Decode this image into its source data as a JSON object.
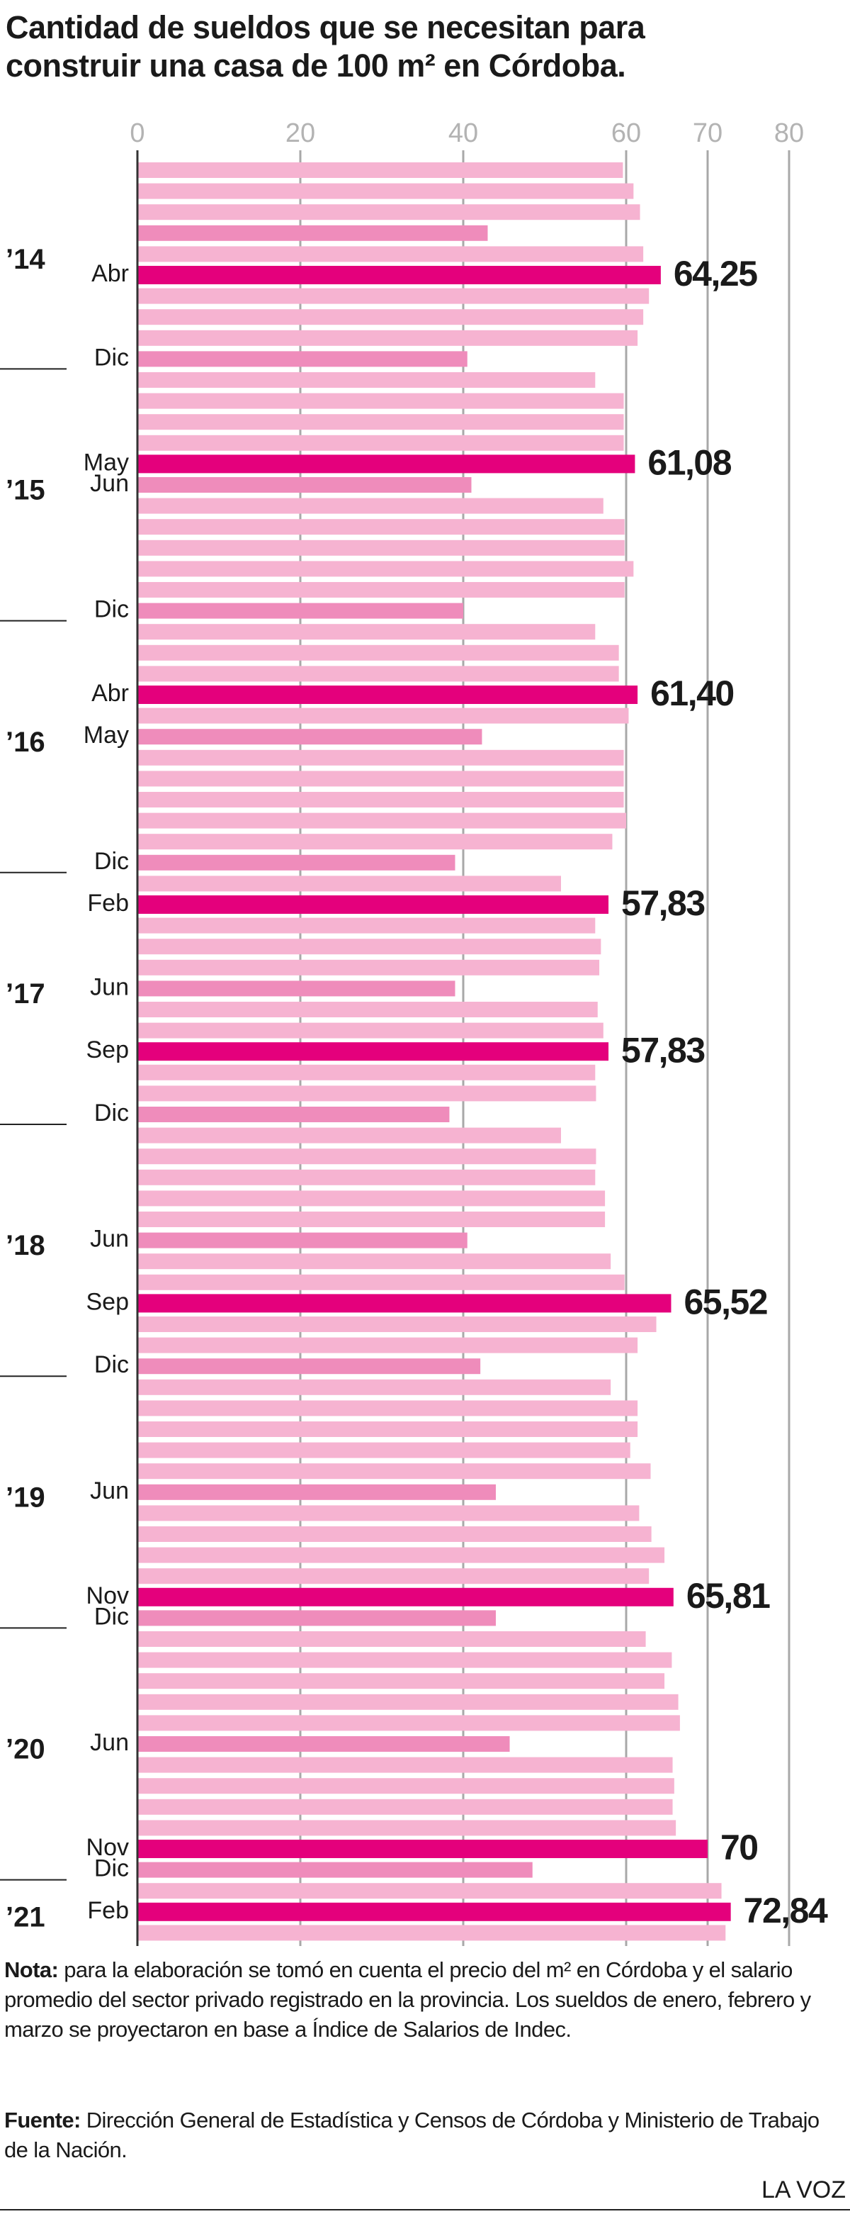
{
  "chart_data": {
    "type": "hbar",
    "title": "Cantidad de sueldos que se necesitan para construir una casa de 100 m² en Córdoba.",
    "xlim": [
      0,
      80
    ],
    "xticks": [
      0,
      20,
      40,
      60,
      70,
      80
    ],
    "grid": true,
    "categories": [
      null,
      null,
      null,
      null,
      null,
      "Abr",
      null,
      null,
      null,
      "Dic",
      null,
      null,
      null,
      null,
      "May",
      "Jun",
      null,
      null,
      null,
      null,
      null,
      "Dic",
      null,
      null,
      null,
      "Abr",
      null,
      "May",
      null,
      null,
      null,
      null,
      null,
      "Dic",
      null,
      "Feb",
      null,
      null,
      null,
      "Jun",
      null,
      null,
      "Sep",
      null,
      null,
      "Dic",
      null,
      null,
      null,
      null,
      null,
      "Jun",
      null,
      null,
      "Sep",
      null,
      null,
      "Dic",
      null,
      null,
      null,
      null,
      null,
      "Jun",
      null,
      null,
      null,
      null,
      "Nov",
      "Dic",
      null,
      null,
      null,
      null,
      null,
      "Jun",
      null,
      null,
      null,
      null,
      "Nov",
      "Dic",
      null,
      "Feb",
      null
    ],
    "years": [
      null,
      null,
      null,
      null,
      "’14",
      null,
      null,
      null,
      null,
      null,
      null,
      null,
      null,
      null,
      null,
      "’15",
      null,
      null,
      null,
      null,
      null,
      null,
      null,
      null,
      null,
      null,
      null,
      "’16",
      null,
      null,
      null,
      null,
      null,
      null,
      null,
      null,
      null,
      null,
      null,
      "’17",
      null,
      null,
      null,
      null,
      null,
      null,
      null,
      null,
      null,
      null,
      null,
      "’18",
      null,
      null,
      null,
      null,
      null,
      null,
      null,
      null,
      null,
      null,
      null,
      "’19",
      null,
      null,
      null,
      null,
      null,
      null,
      null,
      null,
      null,
      null,
      null,
      "’20",
      null,
      null,
      null,
      null,
      null,
      null,
      null,
      "’21",
      null
    ],
    "values": [
      59.6,
      60.9,
      61.7,
      43,
      62.1,
      64.25,
      62.8,
      62.1,
      61.4,
      40.5,
      56.2,
      59.7,
      59.7,
      59.7,
      61.08,
      41,
      57.2,
      59.8,
      59.8,
      60.9,
      59.8,
      40,
      56.2,
      59.1,
      59.1,
      61.4,
      60.3,
      42.3,
      59.7,
      59.7,
      59.7,
      60,
      58.3,
      39,
      52,
      57.83,
      56.2,
      56.9,
      56.7,
      39,
      56.5,
      57.2,
      57.83,
      56.2,
      56.3,
      38.3,
      52,
      56.3,
      56.2,
      57.4,
      57.4,
      40.5,
      58.1,
      59.8,
      65.52,
      63.7,
      61.4,
      42.1,
      58.1,
      61.4,
      61.4,
      60.5,
      63,
      44,
      61.6,
      63.1,
      64.7,
      62.8,
      65.81,
      44,
      62.4,
      65.6,
      64.7,
      66.4,
      66.6,
      45.7,
      65.7,
      65.9,
      65.7,
      66.1,
      70,
      48.5,
      71.7,
      72.84,
      72.2
    ],
    "value_labels": [
      null,
      null,
      null,
      null,
      null,
      "64,25",
      null,
      null,
      null,
      null,
      null,
      null,
      null,
      null,
      "61,08",
      null,
      null,
      null,
      null,
      null,
      null,
      null,
      null,
      null,
      null,
      "61,40",
      null,
      null,
      null,
      null,
      null,
      null,
      null,
      null,
      null,
      "57,83",
      null,
      null,
      null,
      null,
      null,
      null,
      "57,83",
      null,
      null,
      null,
      null,
      null,
      null,
      null,
      null,
      null,
      null,
      null,
      "65,52",
      null,
      null,
      null,
      null,
      null,
      null,
      null,
      null,
      null,
      null,
      null,
      null,
      null,
      "65,81",
      null,
      null,
      null,
      null,
      null,
      null,
      null,
      null,
      null,
      null,
      null,
      "70",
      null,
      null,
      "72,84",
      null
    ],
    "colors": [
      "#f6b3d1",
      "#f6b3d1",
      "#f6b3d1",
      "#ef8cbb",
      "#f6b3d1",
      "#e4007c",
      "#f6b3d1",
      "#f6b3d1",
      "#f6b3d1",
      "#ef8cbb",
      "#f6b3d1",
      "#f6b3d1",
      "#f6b3d1",
      "#f6b3d1",
      "#e4007c",
      "#ef8cbb",
      "#f6b3d1",
      "#f6b3d1",
      "#f6b3d1",
      "#f6b3d1",
      "#f6b3d1",
      "#ef8cbb",
      "#f6b3d1",
      "#f6b3d1",
      "#f6b3d1",
      "#e4007c",
      "#f6b3d1",
      "#ef8cbb",
      "#f6b3d1",
      "#f6b3d1",
      "#f6b3d1",
      "#f6b3d1",
      "#f6b3d1",
      "#ef8cbb",
      "#f6b3d1",
      "#e4007c",
      "#f6b3d1",
      "#f6b3d1",
      "#f6b3d1",
      "#ef8cbb",
      "#f6b3d1",
      "#f6b3d1",
      "#e4007c",
      "#f6b3d1",
      "#f6b3d1",
      "#ef8cbb",
      "#f6b3d1",
      "#f6b3d1",
      "#f6b3d1",
      "#f6b3d1",
      "#f6b3d1",
      "#ef8cbb",
      "#f6b3d1",
      "#f6b3d1",
      "#e4007c",
      "#f6b3d1",
      "#f6b3d1",
      "#ef8cbb",
      "#f6b3d1",
      "#f6b3d1",
      "#f6b3d1",
      "#f6b3d1",
      "#f6b3d1",
      "#ef8cbb",
      "#f6b3d1",
      "#f6b3d1",
      "#f6b3d1",
      "#f6b3d1",
      "#e4007c",
      "#ef8cbb",
      "#f6b3d1",
      "#f6b3d1",
      "#f6b3d1",
      "#f6b3d1",
      "#f6b3d1",
      "#ef8cbb",
      "#f6b3d1",
      "#f6b3d1",
      "#f6b3d1",
      "#f6b3d1",
      "#e4007c",
      "#ef8cbb",
      "#f6b3d1",
      "#e4007c",
      "#f6b3d1"
    ],
    "note_label": "Nota:",
    "note_text": "para la elaboración se tomó en cuenta el precio del m² en Córdoba y el salario promedio del sector privado registrado en la provincia. Los sueldos de enero, febrero y marzo se proyectaron en base a Índice de Salarios de Indec.",
    "source_label": "Fuente:",
    "source_text": "Dirección General de Estadística y Censos de Córdoba y Ministerio de Trabajo de la Nación.",
    "brand": "LA VOZ"
  }
}
